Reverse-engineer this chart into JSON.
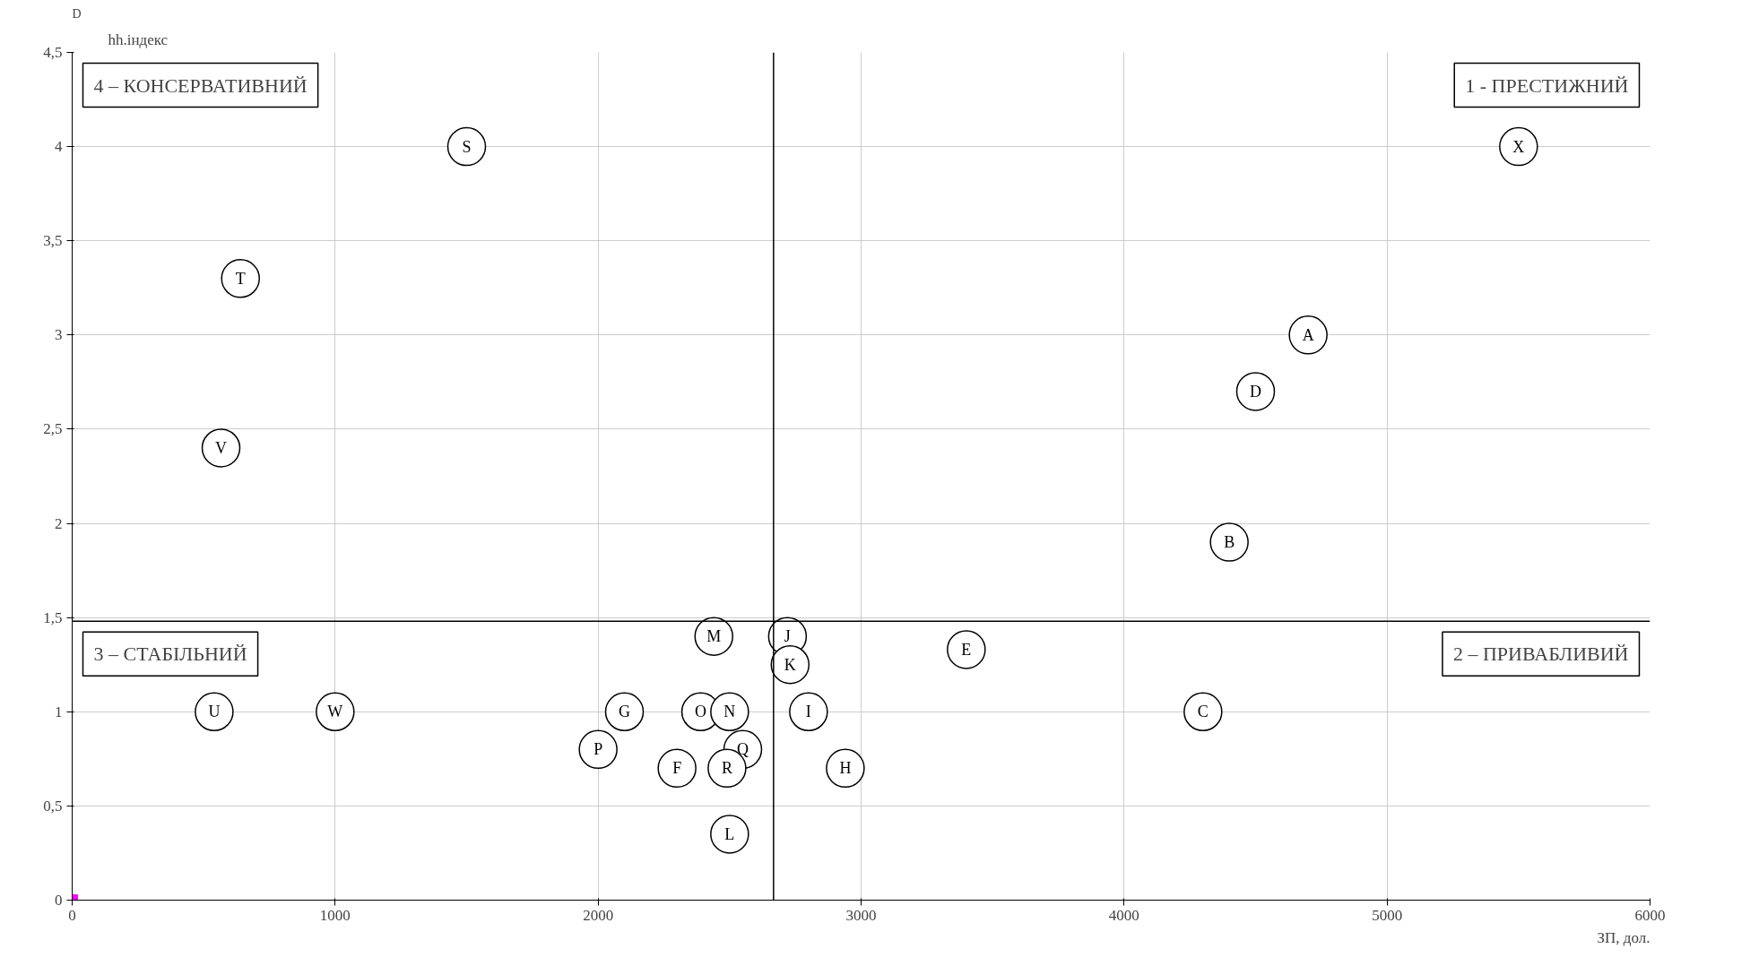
{
  "chart_data": {
    "type": "scatter",
    "ylabel": "hh.індекс",
    "xlabel": "ЗП, дол.",
    "annotations": [
      "4 – КОНСЕРВАТИВНИЙ",
      "1 - ПРЕСТИЖНИЙ",
      "3 – СТАБІЛЬНИЙ",
      "2 – ПРИВАБЛИВИЙ",
      "D"
    ],
    "xlim": [
      0,
      6000
    ],
    "xticks": [
      0,
      1000,
      2000,
      3000,
      4000,
      5000,
      6000
    ],
    "ylim": [
      0,
      4.5
    ],
    "yticks": [
      0,
      {
        "value": 0.5,
        "label": "0,5"
      },
      1,
      {
        "value": 1.5,
        "label": "1,5"
      },
      2,
      {
        "value": 2.5,
        "label": "2,5"
      },
      3,
      {
        "value": 3.5,
        "label": "3,5"
      },
      4,
      {
        "value": 4.5,
        "label": "4,5"
      }
    ],
    "grid": true,
    "ref_lines": [
      {
        "axis": "x",
        "value": 2667,
        "color": "#000000"
      },
      {
        "axis": "y",
        "value": 1.48,
        "color": "#000000"
      }
    ],
    "series": [
      {
        "color": "#000000",
        "marker": "circle",
        "x": [
          1500,
          640,
          566,
          5500,
          4700,
          4500,
          4400,
          3400,
          4300,
          2440,
          2720,
          2730,
          540,
          1000,
          2100,
          2390,
          2500,
          2800,
          2000,
          2550,
          2300,
          2490,
          2940,
          2500
        ],
        "values": [
          4,
          3.3,
          2.4,
          4,
          3.0,
          2.7,
          1.9,
          1.33,
          1.0,
          1.4,
          1.4,
          1.25,
          1.0,
          1.0,
          1.0,
          1.0,
          1.0,
          1.0,
          0.8,
          0.8,
          0.7,
          0.7,
          0.7,
          0.35
        ],
        "value_labels": [
          "S",
          "T",
          "V",
          "X",
          "A",
          "D",
          "B",
          "E",
          "C",
          "M",
          "J",
          "K",
          "U",
          "W",
          "G",
          "O",
          "N",
          "I",
          "P",
          "Q",
          "F",
          "R",
          "H",
          "L"
        ]
      },
      {
        "color": "#ff00ff",
        "marker": "square",
        "x": [
          0
        ],
        "values": [
          0
        ]
      }
    ]
  }
}
